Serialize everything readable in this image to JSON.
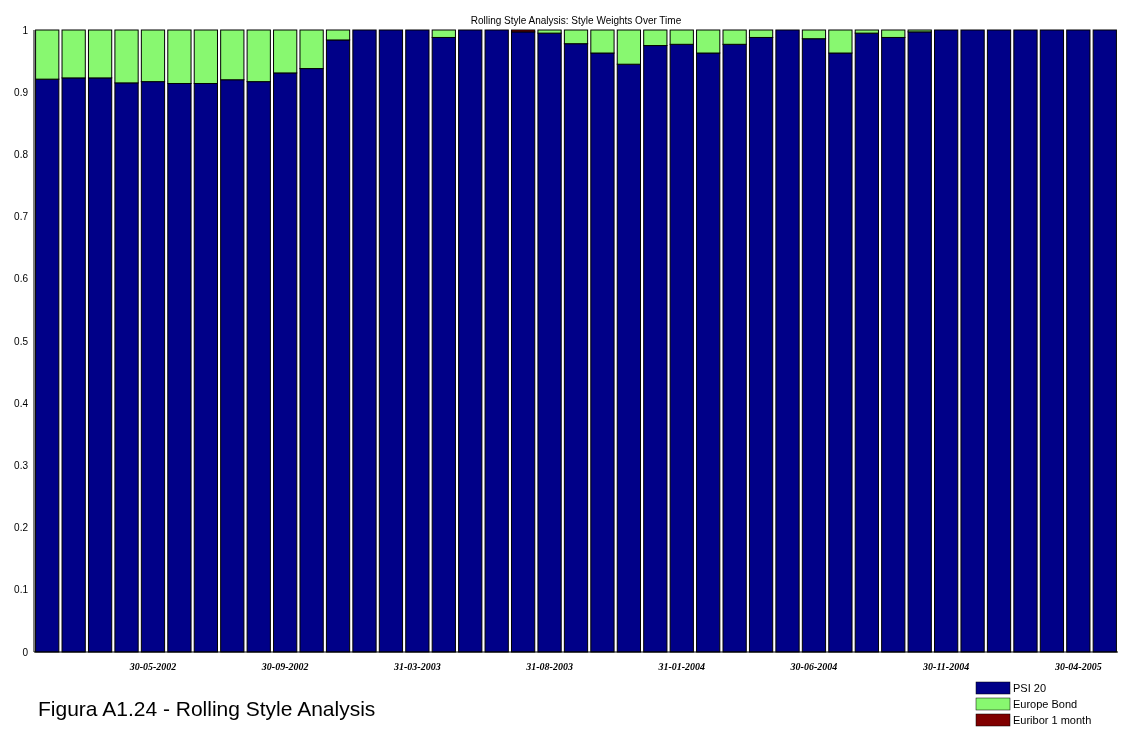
{
  "chart_data": {
    "type": "bar",
    "title": "Rolling Style Analysis: Style Weights Over Time",
    "stacked": true,
    "categories": [
      null,
      null,
      null,
      null,
      "30-05-2002",
      null,
      null,
      null,
      null,
      "30-09-2002",
      null,
      null,
      null,
      null,
      "31-03-2003",
      null,
      null,
      null,
      null,
      "31-08-2003",
      null,
      null,
      null,
      null,
      "31-01-2004",
      null,
      null,
      null,
      null,
      "30-06-2004",
      null,
      null,
      null,
      null,
      "30-11-2004",
      null,
      null,
      null,
      null,
      "30-04-2005",
      null
    ],
    "series": [
      {
        "name": "PSI 20",
        "color": "#000088",
        "values": [
          0.921,
          0.923,
          0.923,
          0.915,
          0.917,
          0.914,
          0.914,
          0.92,
          0.917,
          0.931,
          0.938,
          0.984,
          1,
          1,
          1,
          0.988,
          1,
          1,
          0.997,
          0.995,
          0.978,
          0.963,
          0.945,
          0.975,
          0.977,
          0.963,
          0.977,
          0.988,
          1,
          0.986,
          0.963,
          0.995,
          0.988,
          0.997,
          1,
          1,
          1,
          1,
          1,
          1,
          1
        ]
      },
      {
        "name": "Europe Bond",
        "color": "#88f870",
        "values": [
          0.079,
          0.077,
          0.077,
          0.085,
          0.083,
          0.086,
          0.086,
          0.08,
          0.083,
          0.069,
          0.062,
          0.016,
          0,
          0,
          0,
          0.012,
          0,
          0,
          0,
          0.005,
          0.022,
          0.037,
          0.055,
          0.025,
          0.023,
          0.037,
          0.023,
          0.012,
          0,
          0.014,
          0.037,
          0.005,
          0.012,
          0.003,
          0,
          0,
          0,
          0,
          0,
          0,
          0
        ]
      },
      {
        "name": "Euribor 1 month",
        "color": "#800000",
        "values": [
          0,
          0,
          0,
          0,
          0,
          0,
          0,
          0,
          0,
          0,
          0,
          0,
          0,
          0,
          0,
          0,
          0,
          0,
          0.003,
          0,
          0,
          0,
          0,
          0,
          0,
          0,
          0,
          0,
          0,
          0,
          0,
          0,
          0,
          0,
          0,
          0,
          0,
          0,
          0,
          0,
          0
        ]
      }
    ],
    "ylim": [
      0,
      1
    ],
    "yticks": [
      0,
      0.1,
      0.2,
      0.3,
      0.4,
      0.5,
      0.6,
      0.7,
      0.8,
      0.9,
      1
    ],
    "grid": false,
    "legend": "bottom right",
    "annotations": [
      "Figura A1.24 - Rolling Style Analysis"
    ]
  }
}
